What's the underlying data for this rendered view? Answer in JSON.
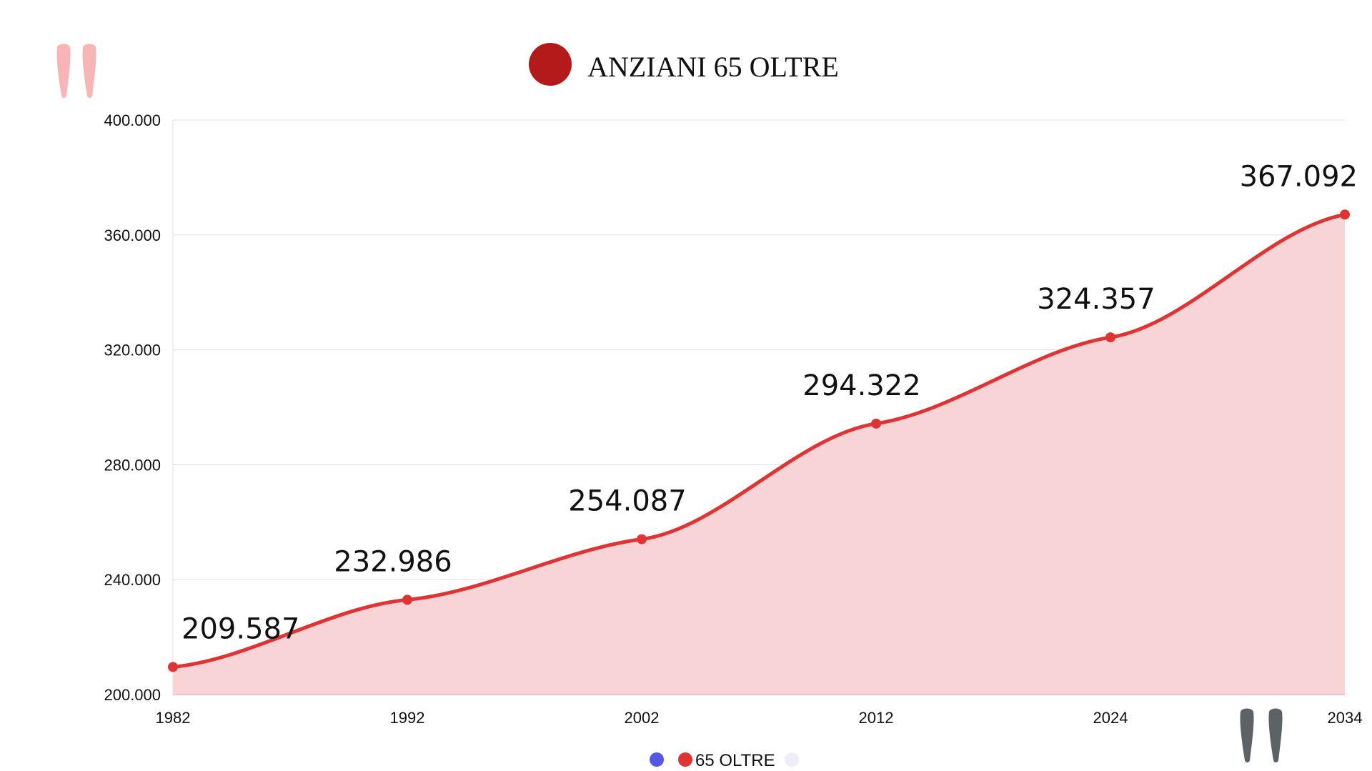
{
  "colors": {
    "series": "#e03434",
    "area": "#f8d4d6",
    "title_dot": "#b51a1a",
    "quote_left": "#f7b5b5",
    "quote_right": "#5c6366",
    "legend_dot_1": "#5457e6",
    "legend_dot_3": "#eeeef6",
    "grid": "#e3e3e3"
  },
  "decorations": {
    "quote_left_icon": "quote-open-icon",
    "quote_right_icon": "quote-close-icon"
  },
  "chart_data": {
    "type": "area",
    "title": "ANZIANI 65 OLTRE",
    "categories": [
      "1982",
      "1992",
      "2002",
      "2012",
      "2024",
      "2034"
    ],
    "series": [
      {
        "name": "65 OLTRE",
        "values": [
          209587,
          232986,
          254087,
          294322,
          324357,
          367092
        ],
        "labels": [
          "209.587",
          "232.986",
          "254.087",
          "294.322",
          "324.357",
          "367.092"
        ]
      }
    ],
    "ylim": [
      200000,
      400000
    ],
    "y_ticks": [
      "200.000",
      "240.000",
      "280.000",
      "320.000",
      "360.000",
      "400.000"
    ],
    "xlabel": "",
    "ylabel": "",
    "grid": true,
    "legend": {
      "position": "bottom-center",
      "items": [
        "",
        "65 OLTRE",
        ""
      ]
    }
  }
}
